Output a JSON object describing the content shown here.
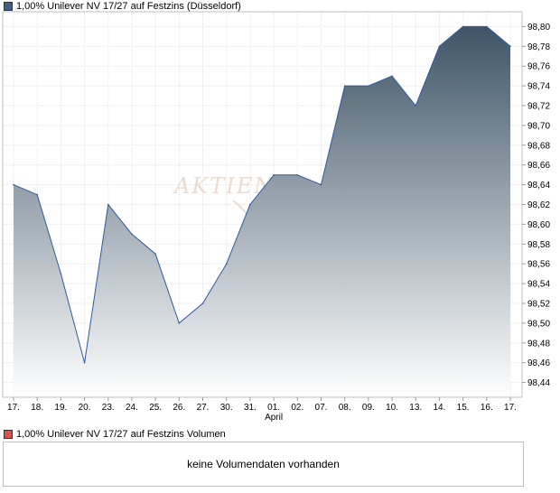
{
  "title": "1,00% Unilever NV 17/27 auf Festzins (Düsseldorf)",
  "volume_title": "1,00% Unilever NV 17/27 auf Festzins Volumen",
  "volume_message": "keine Volumendaten vorhanden",
  "watermark": "AKTIEN",
  "colors": {
    "price_swatch": "#3d5f8a",
    "volume_swatch": "#d9534f",
    "line": "#2c5aa0",
    "fill_top": "#3f5567",
    "fill_bottom": "#ffffff"
  },
  "chart_data": {
    "type": "area",
    "title": "1,00% Unilever NV 17/27 auf Festzins (Düsseldorf)",
    "categories": [
      "17.",
      "18.",
      "19.",
      "20.",
      "23.",
      "24.",
      "25.",
      "26.",
      "27.",
      "30.",
      "31.",
      "01.",
      "02.",
      "07.",
      "08.",
      "09.",
      "10.",
      "13.",
      "14.",
      "15.",
      "16.",
      "17."
    ],
    "month_label": {
      "text": "April",
      "under_category_index": 11
    },
    "series": [
      {
        "values": [
          98.64,
          98.63,
          98.55,
          98.46,
          98.62,
          98.59,
          98.57,
          98.5,
          98.52,
          98.56,
          98.62,
          98.65,
          98.65,
          98.64,
          98.74,
          98.74,
          98.75,
          98.72,
          98.78,
          98.8,
          98.8,
          98.78
        ]
      }
    ],
    "y_ticks": [
      "98,44",
      "98,46",
      "98,48",
      "98,50",
      "98,52",
      "98,54",
      "98,56",
      "98,58",
      "98,60",
      "98,62",
      "98,64",
      "98,66",
      "98,68",
      "98,70",
      "98,72",
      "98,74",
      "98,76",
      "98,78",
      "98,80"
    ],
    "ylim": [
      98.425,
      98.815
    ],
    "grid": true,
    "xlabel": "",
    "ylabel": ""
  }
}
